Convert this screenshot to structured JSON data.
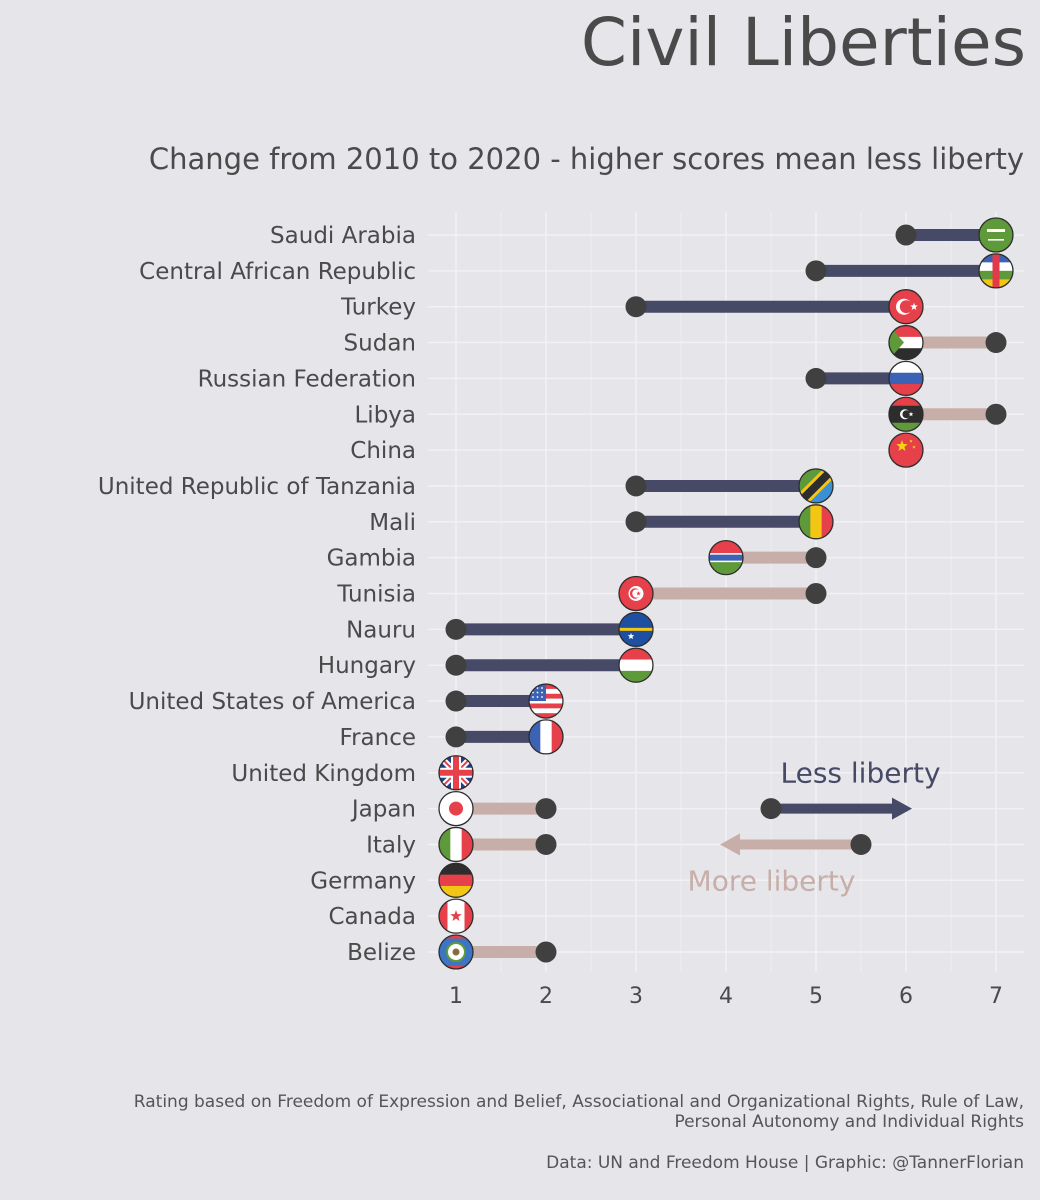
{
  "header": {
    "title": "Civil Liberties",
    "subtitle": "Change from 2010 to 2020 - higher scores mean less liberty"
  },
  "footer": {
    "caption_line1": "Rating based on Freedom of Expression and Belief, Associational and Organizational Rights, Rule of Law,",
    "caption_line2": "Personal Autonomy and Individual Rights",
    "source": "Data: UN and Freedom House | Graphic: @TannerFlorian"
  },
  "legend": {
    "less_liberty": "Less liberty",
    "more_liberty": "More liberty",
    "less_color": "#474a66",
    "more_color": "#c8aea8"
  },
  "colors": {
    "background": "#e6e5ea",
    "worse": "#474a66",
    "better": "#c8aea8",
    "dot": "#404040",
    "grid": "#f2f1f4"
  },
  "chart_data": {
    "type": "dumbbell",
    "title": "Civil Liberties",
    "subtitle": "Change from 2010 to 2020 - higher scores mean less liberty",
    "xlim": [
      1,
      7
    ],
    "x_ticks": [
      1,
      2,
      3,
      4,
      5,
      6,
      7
    ],
    "grid": true,
    "series": [
      {
        "name": "2010"
      },
      {
        "name": "2020"
      }
    ],
    "rows": [
      {
        "country": "Saudi Arabia",
        "y2010": 6,
        "y2020": 7,
        "flag": "saudi-arabia"
      },
      {
        "country": "Central African Republic",
        "y2010": 5,
        "y2020": 7,
        "flag": "central-african-republic"
      },
      {
        "country": "Turkey",
        "y2010": 3,
        "y2020": 6,
        "flag": "turkey"
      },
      {
        "country": "Sudan",
        "y2010": 7,
        "y2020": 6,
        "flag": "sudan"
      },
      {
        "country": "Russian Federation",
        "y2010": 5,
        "y2020": 6,
        "flag": "russia"
      },
      {
        "country": "Libya",
        "y2010": 7,
        "y2020": 6,
        "flag": "libya"
      },
      {
        "country": "China",
        "y2010": 6,
        "y2020": 6,
        "flag": "china"
      },
      {
        "country": "United Republic of Tanzania",
        "y2010": 3,
        "y2020": 5,
        "flag": "tanzania"
      },
      {
        "country": "Mali",
        "y2010": 3,
        "y2020": 5,
        "flag": "mali"
      },
      {
        "country": "Gambia",
        "y2010": 5,
        "y2020": 4,
        "flag": "gambia"
      },
      {
        "country": "Tunisia",
        "y2010": 5,
        "y2020": 3,
        "flag": "tunisia"
      },
      {
        "country": "Nauru",
        "y2010": 1,
        "y2020": 3,
        "flag": "nauru"
      },
      {
        "country": "Hungary",
        "y2010": 1,
        "y2020": 3,
        "flag": "hungary"
      },
      {
        "country": "United States of America",
        "y2010": 1,
        "y2020": 2,
        "flag": "usa"
      },
      {
        "country": "France",
        "y2010": 1,
        "y2020": 2,
        "flag": "france"
      },
      {
        "country": "United Kingdom",
        "y2010": 1,
        "y2020": 1,
        "flag": "uk"
      },
      {
        "country": "Japan",
        "y2010": 2,
        "y2020": 1,
        "flag": "japan"
      },
      {
        "country": "Italy",
        "y2010": 2,
        "y2020": 1,
        "flag": "italy"
      },
      {
        "country": "Germany",
        "y2010": 1,
        "y2020": 1,
        "flag": "germany"
      },
      {
        "country": "Canada",
        "y2010": 1,
        "y2020": 1,
        "flag": "canada"
      },
      {
        "country": "Belize",
        "y2010": 2,
        "y2020": 1,
        "flag": "belize"
      }
    ],
    "legend_example": {
      "less": {
        "from": 4.5,
        "to": 6
      },
      "more": {
        "from": 5.5,
        "to": 4
      }
    }
  }
}
